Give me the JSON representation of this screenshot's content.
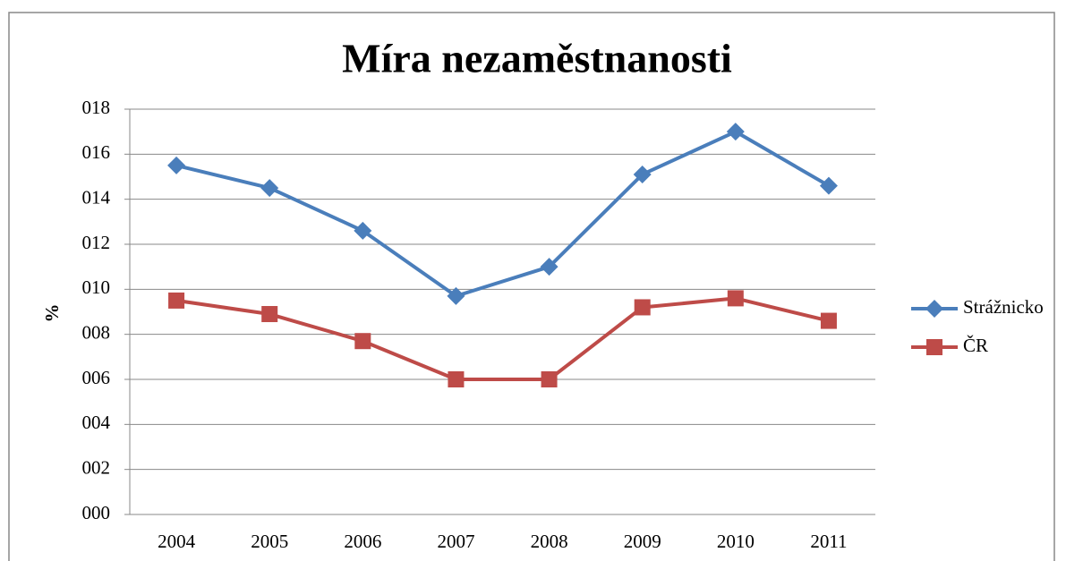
{
  "chart_data": {
    "type": "line",
    "title": "Míra nezaměstnanosti",
    "y_label": "%",
    "categories": [
      "2004",
      "2005",
      "2006",
      "2007",
      "2008",
      "2009",
      "2010",
      "2011"
    ],
    "series": [
      {
        "name": "Strážnicko",
        "color": "#4a7ebb",
        "marker": "diamond",
        "values": [
          15.5,
          14.5,
          12.6,
          9.7,
          11.0,
          15.1,
          17.0,
          14.6
        ]
      },
      {
        "name": "ČR",
        "color": "#be4b48",
        "marker": "square",
        "values": [
          9.5,
          8.9,
          7.7,
          6.0,
          6.0,
          9.2,
          9.6,
          8.6
        ]
      }
    ],
    "ylim": [
      0,
      18
    ],
    "yticks": [
      {
        "value": 0,
        "label": "000"
      },
      {
        "value": 2,
        "label": "002"
      },
      {
        "value": 4,
        "label": "004"
      },
      {
        "value": 6,
        "label": "006"
      },
      {
        "value": 8,
        "label": "008"
      },
      {
        "value": 10,
        "label": "010"
      },
      {
        "value": 12,
        "label": "012"
      },
      {
        "value": 14,
        "label": "014"
      },
      {
        "value": 16,
        "label": "016"
      },
      {
        "value": 18,
        "label": "018"
      }
    ],
    "grid": true,
    "legend": "right"
  }
}
